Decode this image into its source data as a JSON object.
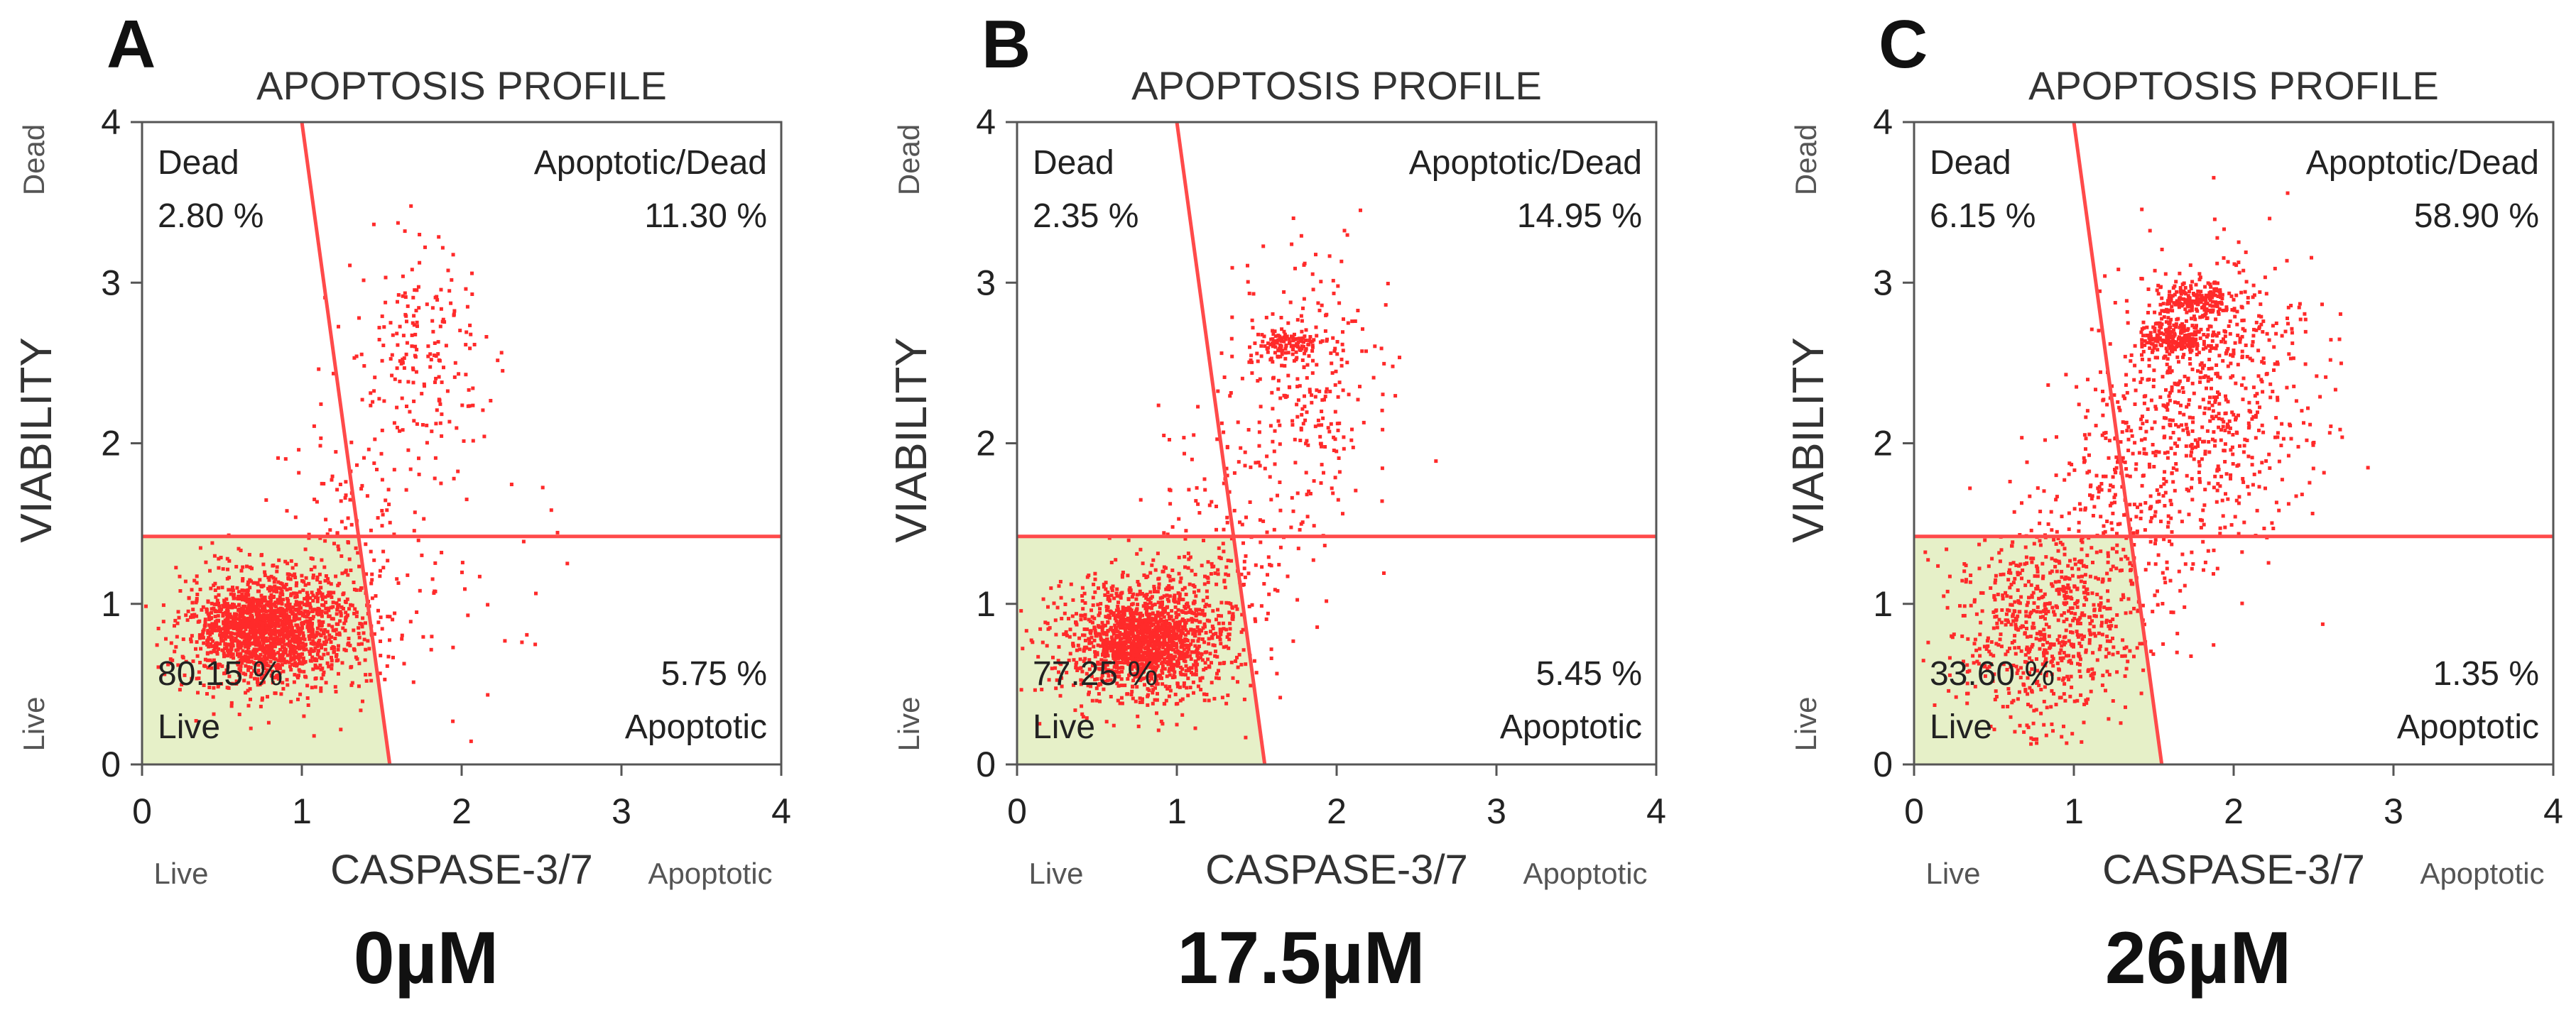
{
  "figure": {
    "panels": [
      {
        "panel_label": "A",
        "title": "APOPTOSIS PROFILE",
        "concentration": "0µM",
        "xlabel": "CASPASE-3/7",
        "ylabel": "VIABILITY",
        "x_end_left": "Live",
        "x_end_right": "Apoptotic",
        "y_end_top": "Dead",
        "y_end_bottom": "Live",
        "quadrants": {
          "top_left": {
            "name": "Dead",
            "percent": "2.80 %"
          },
          "top_right": {
            "name": "Apoptotic/Dead",
            "percent": "11.30 %"
          },
          "bottom_left": {
            "name": "Live",
            "percent": "80.15 %"
          },
          "bottom_right": {
            "name": "Apoptotic",
            "percent": "5.75 %"
          }
        }
      },
      {
        "panel_label": "B",
        "title": "APOPTOSIS PROFILE",
        "concentration": "17.5µM",
        "xlabel": "CASPASE-3/7",
        "ylabel": "VIABILITY",
        "x_end_left": "Live",
        "x_end_right": "Apoptotic",
        "y_end_top": "Dead",
        "y_end_bottom": "Live",
        "quadrants": {
          "top_left": {
            "name": "Dead",
            "percent": "2.35 %"
          },
          "top_right": {
            "name": "Apoptotic/Dead",
            "percent": "14.95 %"
          },
          "bottom_left": {
            "name": "Live",
            "percent": "77.25 %"
          },
          "bottom_right": {
            "name": "Apoptotic",
            "percent": "5.45 %"
          }
        }
      },
      {
        "panel_label": "C",
        "title": "APOPTOSIS PROFILE",
        "concentration": "26µM",
        "xlabel": "CASPASE-3/7",
        "ylabel": "VIABILITY",
        "x_end_left": "Live",
        "x_end_right": "Apoptotic",
        "y_end_top": "Dead",
        "y_end_bottom": "Live",
        "quadrants": {
          "top_left": {
            "name": "Dead",
            "percent": "6.15 %"
          },
          "top_right": {
            "name": "Apoptotic/Dead",
            "percent": "58.90 %"
          },
          "bottom_left": {
            "name": "Live",
            "percent": "33.60 %"
          },
          "bottom_right": {
            "name": "Apoptotic",
            "percent": "1.35 %"
          }
        }
      }
    ]
  },
  "chart_data": [
    {
      "type": "scatter",
      "title": "APOPTOSIS PROFILE",
      "xlabel": "CASPASE-3/7",
      "ylabel": "VIABILITY",
      "xlim": [
        0,
        4
      ],
      "ylim": [
        0,
        4
      ],
      "x_ticks": [
        0,
        1,
        2,
        3,
        4
      ],
      "y_ticks": [
        0,
        1,
        2,
        3,
        4
      ],
      "gate_horizontal_y": 1.42,
      "gate_line": {
        "top_x": 1.0,
        "top_y": 4,
        "bottom_x": 1.55,
        "bottom_y": 0
      },
      "point_color": "#ff2a2a",
      "gate_color": "#ff4a4a",
      "live_fill_color": "#e6f0c8",
      "clusters": [
        {
          "cx": 0.85,
          "cy": 0.85,
          "sx": 0.28,
          "sy": 0.2,
          "n": 1300
        },
        {
          "cx": 0.7,
          "cy": 0.85,
          "sx": 0.18,
          "sy": 0.12,
          "n": 500
        },
        {
          "cx": 1.75,
          "cy": 2.55,
          "sx": 0.22,
          "sy": 0.35,
          "n": 180
        },
        {
          "cx": 1.4,
          "cy": 1.5,
          "sx": 0.25,
          "sy": 0.45,
          "n": 140
        },
        {
          "cx": 2.2,
          "cy": 1.2,
          "sx": 0.3,
          "sy": 0.6,
          "n": 25
        }
      ]
    },
    {
      "type": "scatter",
      "title": "APOPTOSIS PROFILE",
      "xlabel": "CASPASE-3/7",
      "ylabel": "VIABILITY",
      "xlim": [
        0,
        4
      ],
      "ylim": [
        0,
        4
      ],
      "x_ticks": [
        0,
        1,
        2,
        3,
        4
      ],
      "y_ticks": [
        0,
        1,
        2,
        3,
        4
      ],
      "gate_horizontal_y": 1.42,
      "gate_line": {
        "top_x": 1.0,
        "top_y": 4,
        "bottom_x": 1.55,
        "bottom_y": 0
      },
      "point_color": "#ff2a2a",
      "gate_color": "#ff4a4a",
      "live_fill_color": "#e6f0c8",
      "clusters": [
        {
          "cx": 0.8,
          "cy": 0.78,
          "sx": 0.28,
          "sy": 0.2,
          "n": 1200
        },
        {
          "cx": 0.78,
          "cy": 0.75,
          "sx": 0.15,
          "sy": 0.1,
          "n": 500
        },
        {
          "cx": 1.7,
          "cy": 2.62,
          "sx": 0.1,
          "sy": 0.04,
          "n": 110
        },
        {
          "cx": 1.8,
          "cy": 2.35,
          "sx": 0.25,
          "sy": 0.45,
          "n": 260
        },
        {
          "cx": 1.35,
          "cy": 1.4,
          "sx": 0.25,
          "sy": 0.4,
          "n": 140
        }
      ]
    },
    {
      "type": "scatter",
      "title": "APOPTOSIS PROFILE",
      "xlabel": "CASPASE-3/7",
      "ylabel": "VIABILITY",
      "xlim": [
        0,
        4
      ],
      "ylim": [
        0,
        4
      ],
      "x_ticks": [
        0,
        1,
        2,
        3,
        4
      ],
      "y_ticks": [
        0,
        1,
        2,
        3,
        4
      ],
      "gate_horizontal_y": 1.42,
      "gate_line": {
        "top_x": 1.0,
        "top_y": 4,
        "bottom_x": 1.55,
        "bottom_y": 0
      },
      "point_color": "#ff2a2a",
      "gate_color": "#ff4a4a",
      "live_fill_color": "#e6f0c8",
      "clusters": [
        {
          "cx": 0.85,
          "cy": 0.85,
          "sx": 0.28,
          "sy": 0.3,
          "n": 700
        },
        {
          "cx": 1.65,
          "cy": 2.65,
          "sx": 0.12,
          "sy": 0.05,
          "n": 220
        },
        {
          "cx": 1.75,
          "cy": 2.9,
          "sx": 0.12,
          "sy": 0.05,
          "n": 180
        },
        {
          "cx": 1.85,
          "cy": 2.3,
          "sx": 0.3,
          "sy": 0.45,
          "n": 650
        },
        {
          "cx": 1.3,
          "cy": 1.6,
          "sx": 0.28,
          "sy": 0.45,
          "n": 260
        }
      ]
    }
  ]
}
